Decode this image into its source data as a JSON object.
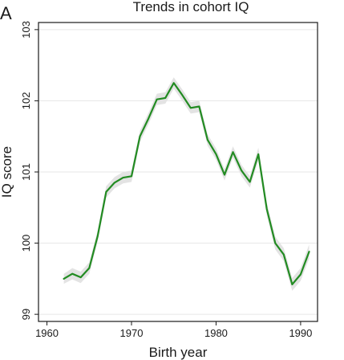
{
  "panel_label": "A",
  "chart_data": {
    "type": "line",
    "title": "Trends in cohort IQ",
    "xlabel": "Birth year",
    "ylabel": "IQ score",
    "xlim": [
      1959,
      1992
    ],
    "ylim": [
      98.9,
      103.1
    ],
    "xticks": [
      1960,
      1970,
      1980,
      1990
    ],
    "yticks": [
      99,
      100,
      101,
      102,
      103
    ],
    "grid": "horizontal",
    "line_color": "#228b22",
    "band_color": "#e3e3e3",
    "series": [
      {
        "x": [
          1962,
          1963,
          1964,
          1965,
          1966,
          1967,
          1968,
          1969,
          1970,
          1971,
          1972,
          1973,
          1974,
          1975,
          1976,
          1977,
          1978,
          1979,
          1980,
          1981,
          1982,
          1983,
          1984,
          1985,
          1986,
          1987,
          1988,
          1989,
          1990,
          1991
        ],
        "values": [
          99.5,
          99.57,
          99.52,
          99.65,
          100.1,
          100.72,
          100.85,
          100.92,
          100.94,
          101.5,
          101.75,
          102.02,
          102.04,
          102.25,
          102.08,
          101.9,
          101.92,
          101.45,
          101.25,
          100.96,
          101.28,
          101.02,
          100.86,
          101.25,
          100.48,
          100.0,
          99.84,
          99.42,
          99.56,
          99.88
        ],
        "lower": [
          99.43,
          99.49,
          99.44,
          99.57,
          100.02,
          100.64,
          100.77,
          100.84,
          100.86,
          101.42,
          101.67,
          101.94,
          101.96,
          102.17,
          102.0,
          101.82,
          101.84,
          101.37,
          101.17,
          100.88,
          101.2,
          100.94,
          100.78,
          101.16,
          100.39,
          99.91,
          99.75,
          99.33,
          99.47,
          99.78
        ],
        "upper": [
          99.57,
          99.65,
          99.6,
          99.73,
          100.18,
          100.8,
          100.93,
          101.0,
          101.02,
          101.58,
          101.83,
          102.1,
          102.12,
          102.33,
          102.16,
          101.98,
          102.0,
          101.53,
          101.33,
          101.04,
          101.36,
          101.1,
          100.94,
          101.34,
          100.57,
          100.09,
          99.93,
          99.51,
          99.65,
          99.98
        ]
      }
    ]
  }
}
